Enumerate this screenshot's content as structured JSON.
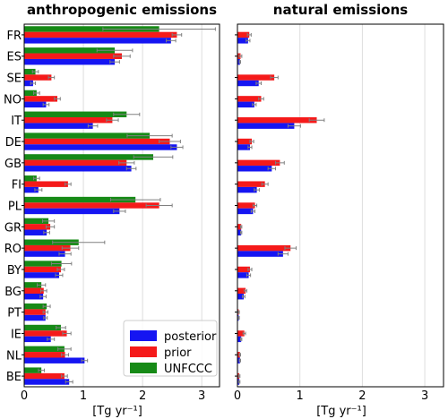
{
  "colors": {
    "posterior": "#1515f2",
    "prior": "#f51a1a",
    "UNFCCC": "#168a16",
    "errorbar": "#808080",
    "grid": "#dddddd"
  },
  "chart_data": [
    {
      "type": "bar",
      "orientation": "horizontal",
      "title": "anthropogenic emissions",
      "xlabel": "[Tg yr⁻¹]",
      "xlim": [
        0,
        3.3
      ],
      "xticks": [
        "0",
        "1",
        "2",
        "3"
      ],
      "grid": true,
      "legend": {
        "placement": "bottom-right",
        "entries": [
          "posterior",
          "prior",
          "UNFCCC"
        ]
      },
      "categories": [
        "FR",
        "ES",
        "SE",
        "NO",
        "IT",
        "DE",
        "GB",
        "FI",
        "PL",
        "GR",
        "RO",
        "BY",
        "BG",
        "PT",
        "IE",
        "NL",
        "BE"
      ],
      "series": [
        {
          "name": "UNFCCC",
          "values": [
            2.28,
            1.53,
            0.19,
            0.21,
            1.73,
            2.12,
            2.18,
            0.21,
            1.88,
            0.41,
            0.92,
            0.63,
            0.29,
            0.38,
            0.62,
            0.68,
            0.29
          ],
          "errors": [
            0.95,
            0.3,
            0.05,
            0.05,
            0.22,
            0.38,
            0.33,
            0.05,
            0.42,
            0.1,
            0.44,
            0.17,
            0.07,
            0.06,
            0.08,
            0.11,
            0.05
          ]
        },
        {
          "name": "prior",
          "values": [
            2.58,
            1.65,
            0.46,
            0.56,
            1.49,
            2.46,
            1.73,
            0.74,
            2.28,
            0.44,
            0.78,
            0.62,
            0.33,
            0.36,
            0.72,
            0.69,
            0.68
          ],
          "errors": [
            0.08,
            0.14,
            0.05,
            0.05,
            0.1,
            0.18,
            0.13,
            0.05,
            0.22,
            0.07,
            0.14,
            0.06,
            0.05,
            0.04,
            0.07,
            0.06,
            0.05
          ]
        },
        {
          "name": "posterior",
          "values": [
            2.48,
            1.53,
            0.15,
            0.37,
            1.16,
            2.58,
            1.81,
            0.24,
            1.61,
            0.38,
            0.69,
            0.59,
            0.32,
            0.36,
            0.45,
            1.02,
            0.76
          ],
          "errors": [
            0.08,
            0.08,
            0.04,
            0.05,
            0.08,
            0.1,
            0.08,
            0.06,
            0.1,
            0.05,
            0.1,
            0.06,
            0.05,
            0.03,
            0.06,
            0.05,
            0.06
          ]
        }
      ]
    },
    {
      "type": "bar",
      "orientation": "horizontal",
      "title": "natural emissions",
      "xlabel": "[Tg yr⁻¹]",
      "xlim": [
        0,
        3.3
      ],
      "xticks": [
        "0",
        "1",
        "2",
        "3"
      ],
      "grid": true,
      "categories": [
        "FR",
        "ES",
        "SE",
        "NO",
        "IT",
        "DE",
        "GB",
        "FI",
        "PL",
        "GR",
        "RO",
        "BY",
        "BG",
        "PT",
        "IE",
        "NL",
        "BE"
      ],
      "series": [
        {
          "name": "UNFCCC",
          "values": [
            0,
            0,
            0,
            0,
            0,
            0,
            0,
            0,
            0,
            0,
            0,
            0,
            0,
            0,
            0,
            0,
            0
          ],
          "errors": [
            0,
            0,
            0,
            0,
            0,
            0,
            0,
            0,
            0,
            0,
            0,
            0,
            0,
            0,
            0,
            0,
            0
          ]
        },
        {
          "name": "prior",
          "values": [
            0.19,
            0.05,
            0.59,
            0.38,
            1.27,
            0.23,
            0.68,
            0.44,
            0.28,
            0.06,
            0.85,
            0.2,
            0.13,
            0.02,
            0.11,
            0.04,
            0.03
          ],
          "errors": [
            0.03,
            0.02,
            0.06,
            0.04,
            0.12,
            0.03,
            0.07,
            0.05,
            0.03,
            0.01,
            0.09,
            0.03,
            0.02,
            0.01,
            0.02,
            0.01,
            0.01
          ]
        },
        {
          "name": "posterior",
          "values": [
            0.17,
            0.04,
            0.34,
            0.27,
            0.91,
            0.2,
            0.55,
            0.31,
            0.25,
            0.06,
            0.73,
            0.18,
            0.1,
            0.02,
            0.06,
            0.04,
            0.03
          ],
          "errors": [
            0.03,
            0.01,
            0.04,
            0.03,
            0.1,
            0.03,
            0.06,
            0.04,
            0.03,
            0.01,
            0.08,
            0.03,
            0.02,
            0.01,
            0.01,
            0.01,
            0.01
          ]
        }
      ]
    }
  ]
}
